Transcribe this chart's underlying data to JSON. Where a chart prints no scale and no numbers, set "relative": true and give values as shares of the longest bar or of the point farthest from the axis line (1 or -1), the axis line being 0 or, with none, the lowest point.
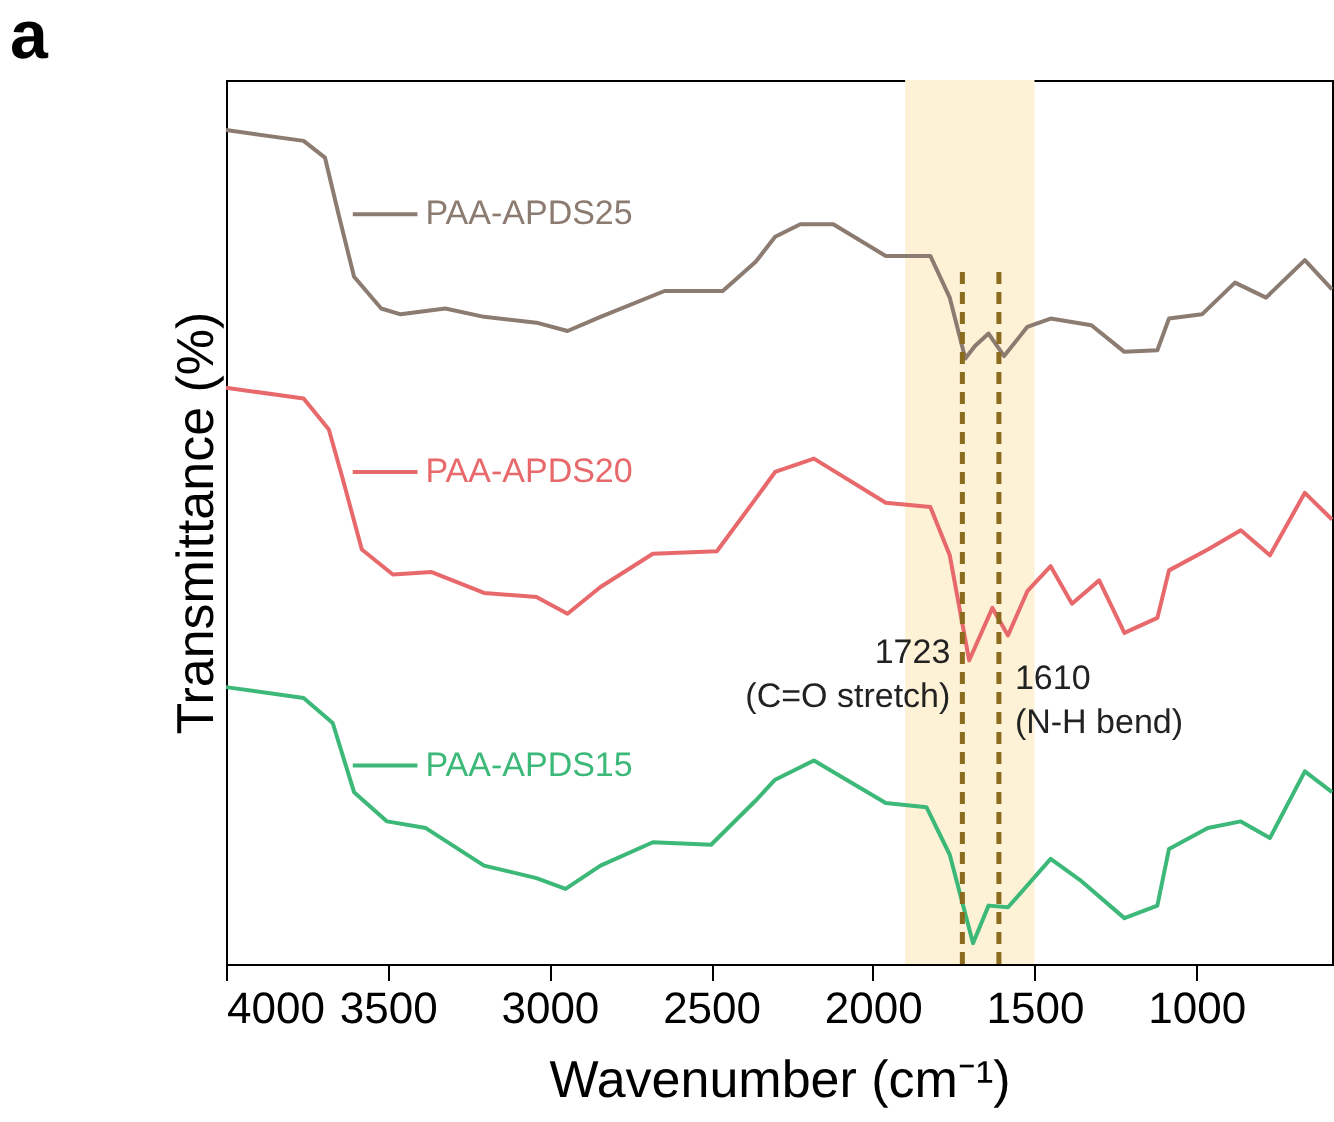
{
  "chart_data": {
    "type": "line",
    "title": "a",
    "xlabel": "Wavenumber (cm⁻¹)",
    "ylabel": "Transmittance (%)",
    "relative": true,
    "xlim": [
      4000,
      580
    ],
    "xticks": [
      4000,
      3500,
      3000,
      2500,
      2000,
      1500,
      1000
    ],
    "legend": "left",
    "series": [
      {
        "name": "PAA-APDS25",
        "color": "#8c7b70",
        "x": [
          4000,
          3760,
          3694,
          3652,
          3604,
          3520,
          3460,
          3322,
          3202,
          3040,
          2944,
          2842,
          2644,
          2464,
          2362,
          2302,
          2224,
          2122,
          1960,
          1822,
          1762,
          1714,
          1684,
          1642,
          1594,
          1522,
          1450,
          1324,
          1222,
          1120,
          1084,
          982,
          880,
          784,
          664,
          580
        ],
        "values": [
          1.0,
          0.987,
          0.967,
          0.899,
          0.824,
          0.786,
          0.779,
          0.786,
          0.776,
          0.769,
          0.759,
          0.776,
          0.807,
          0.807,
          0.842,
          0.872,
          0.887,
          0.887,
          0.849,
          0.849,
          0.799,
          0.726,
          0.741,
          0.756,
          0.729,
          0.764,
          0.774,
          0.766,
          0.734,
          0.736,
          0.774,
          0.779,
          0.817,
          0.799,
          0.844,
          0.809
        ]
      },
      {
        "name": "PAA-APDS20",
        "color": "#e8696b",
        "x": [
          4000,
          3760,
          3682,
          3640,
          3580,
          3484,
          3364,
          3202,
          3040,
          2944,
          2842,
          2680,
          2482,
          2362,
          2302,
          2182,
          1960,
          1822,
          1762,
          1702,
          1630,
          1582,
          1522,
          1450,
          1384,
          1300,
          1222,
          1120,
          1084,
          964,
          862,
          772,
          664,
          580
        ],
        "values": [
          0.691,
          0.678,
          0.641,
          0.583,
          0.497,
          0.467,
          0.47,
          0.445,
          0.44,
          0.42,
          0.452,
          0.492,
          0.495,
          0.558,
          0.59,
          0.606,
          0.553,
          0.548,
          0.49,
          0.364,
          0.427,
          0.394,
          0.447,
          0.477,
          0.432,
          0.46,
          0.397,
          0.415,
          0.472,
          0.497,
          0.52,
          0.49,
          0.565,
          0.533
        ]
      },
      {
        "name": "PAA-APDS15",
        "color": "#3cb878",
        "x": [
          4000,
          3760,
          3670,
          3604,
          3502,
          3382,
          3202,
          3040,
          2950,
          2842,
          2680,
          2500,
          2362,
          2302,
          2182,
          1960,
          1834,
          1762,
          1690,
          1642,
          1582,
          1450,
          1360,
          1222,
          1120,
          1084,
          964,
          862,
          772,
          664,
          580
        ],
        "values": [
          0.332,
          0.319,
          0.289,
          0.206,
          0.171,
          0.163,
          0.118,
          0.103,
          0.09,
          0.118,
          0.146,
          0.143,
          0.196,
          0.221,
          0.244,
          0.193,
          0.188,
          0.131,
          0.025,
          0.07,
          0.068,
          0.126,
          0.101,
          0.055,
          0.07,
          0.138,
          0.163,
          0.171,
          0.151,
          0.231,
          0.206
        ]
      }
    ],
    "bands": [
      {
        "axis": "x",
        "from": 1900,
        "to": 1500,
        "color": "#fdf1d6"
      }
    ],
    "ref_lines": [
      {
        "axis": "x",
        "value": 1723,
        "label": "1723\n(C=O stretch)",
        "color": "#8b6b1e",
        "line_style": "dashed"
      },
      {
        "axis": "x",
        "value": 1610,
        "label": "1610\n(N-H bend)",
        "color": "#8b6b1e",
        "line_style": "dashed"
      }
    ]
  }
}
